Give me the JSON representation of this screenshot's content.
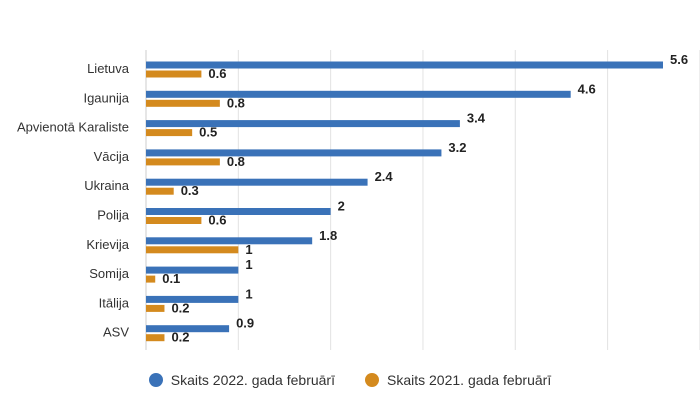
{
  "chart_data": {
    "type": "bar",
    "orientation": "horizontal",
    "title": "",
    "xlabel": "",
    "ylabel": "",
    "xlim": [
      0,
      6
    ],
    "grid": true,
    "legend_position": "bottom",
    "categories": [
      "Lietuva",
      "Igaunija",
      "Apvienotā Karaliste",
      "Vācija",
      "Ukraina",
      "Polija",
      "Krievija",
      "Somija",
      "Itālija",
      "ASV"
    ],
    "series": [
      {
        "name": "Skaits 2022. gada februārī",
        "color": "#3a72b8",
        "values": [
          5.6,
          4.6,
          3.4,
          3.2,
          2.4,
          2,
          1.8,
          1,
          1,
          0.9
        ],
        "labels": [
          "5.6",
          "4.6",
          "3.4",
          "3.2",
          "2.4",
          "2",
          "1.8",
          "1",
          "1",
          "0.9"
        ]
      },
      {
        "name": "Skaits 2021. gada februārī",
        "color": "#d48a1e",
        "values": [
          0.6,
          0.8,
          0.5,
          0.8,
          0.3,
          0.6,
          1,
          0.1,
          0.2,
          0.2
        ],
        "labels": [
          "0.6",
          "0.8",
          "0.5",
          "0.8",
          "0.3",
          "0.6",
          "1",
          "0.1",
          "0.2",
          "0.2"
        ]
      }
    ]
  }
}
